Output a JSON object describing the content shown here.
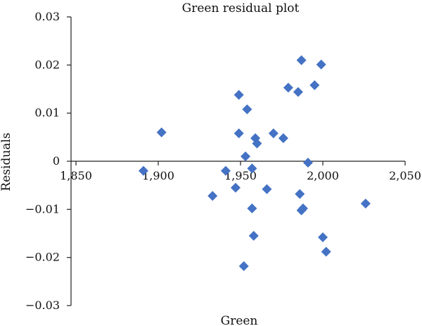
{
  "chart_data": {
    "type": "scatter",
    "title": "Green residual plot",
    "xlabel": "Green",
    "ylabel": "Residuals",
    "xlim": [
      1850,
      2050
    ],
    "ylim": [
      -0.03,
      0.03
    ],
    "x_ticks": [
      1850,
      1900,
      1950,
      2000,
      2050
    ],
    "x_tick_labels": [
      "1,850",
      "1,900",
      "1,950",
      "2,000",
      "2,050"
    ],
    "y_ticks": [
      -0.03,
      -0.02,
      -0.01,
      0,
      0.01,
      0.02,
      0.03
    ],
    "y_tick_labels": [
      "−0.03",
      "−0.02",
      "−0.01",
      "0",
      "0.01",
      "0.02",
      "0.03"
    ],
    "grid": false,
    "marker_color": "#4472C4",
    "marker": "diamond",
    "series": [
      {
        "points": [
          {
            "x": 1891,
            "y": -0.002
          },
          {
            "x": 1902,
            "y": 0.006
          },
          {
            "x": 1933,
            "y": -0.0072
          },
          {
            "x": 1941,
            "y": -0.002
          },
          {
            "x": 1947,
            "y": -0.0055
          },
          {
            "x": 1949,
            "y": 0.0138
          },
          {
            "x": 1949,
            "y": 0.0058
          },
          {
            "x": 1952,
            "y": -0.0218
          },
          {
            "x": 1953,
            "y": 0.001
          },
          {
            "x": 1954,
            "y": 0.0108
          },
          {
            "x": 1957,
            "y": -0.0015
          },
          {
            "x": 1957,
            "y": -0.0098
          },
          {
            "x": 1958,
            "y": -0.0155
          },
          {
            "x": 1959,
            "y": 0.0048
          },
          {
            "x": 1960,
            "y": 0.0037
          },
          {
            "x": 1966,
            "y": -0.0058
          },
          {
            "x": 1970,
            "y": 0.0058
          },
          {
            "x": 1976,
            "y": 0.0048
          },
          {
            "x": 1979,
            "y": 0.0153
          },
          {
            "x": 1985,
            "y": 0.0144
          },
          {
            "x": 1986,
            "y": -0.0068
          },
          {
            "x": 1987,
            "y": -0.0102
          },
          {
            "x": 1988,
            "y": -0.0098
          },
          {
            "x": 1987,
            "y": 0.021
          },
          {
            "x": 1991,
            "y": -0.0003
          },
          {
            "x": 1995,
            "y": 0.0158
          },
          {
            "x": 1999,
            "y": 0.0201
          },
          {
            "x": 2000,
            "y": -0.0158
          },
          {
            "x": 2002,
            "y": -0.0188
          },
          {
            "x": 2026,
            "y": -0.0088
          }
        ]
      }
    ]
  }
}
